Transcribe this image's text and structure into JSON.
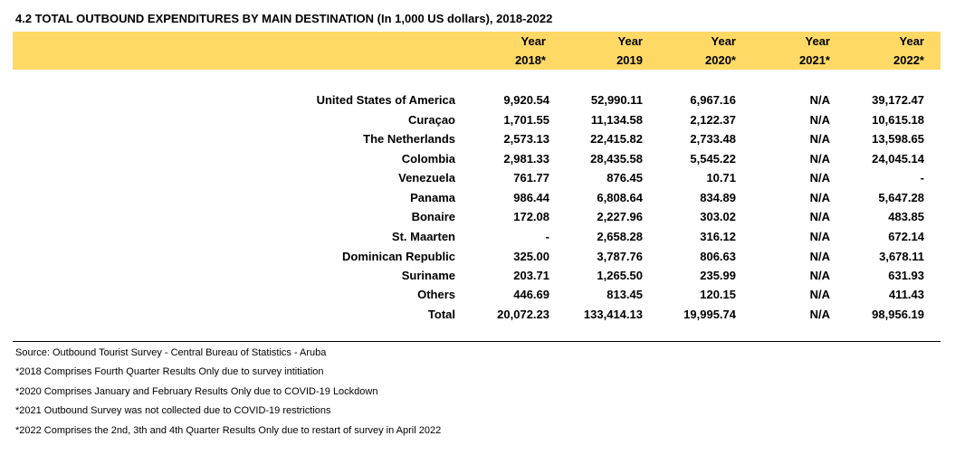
{
  "title": "4.2 TOTAL OUTBOUND EXPENDITURES BY MAIN DESTINATION (In 1,000 US dollars), 2018-2022",
  "columns": [
    {
      "line1": "Year",
      "line2": "2018*"
    },
    {
      "line1": "Year",
      "line2": "2019"
    },
    {
      "line1": "Year",
      "line2": "2020*"
    },
    {
      "line1": "Year",
      "line2": "2021*"
    },
    {
      "line1": "Year",
      "line2": "2022*"
    }
  ],
  "rows": [
    {
      "name": "United States of America",
      "values": [
        "9,920.54",
        "52,990.11",
        "6,967.16",
        "N/A",
        "39,172.47"
      ]
    },
    {
      "name": "Curaçao",
      "values": [
        "1,701.55",
        "11,134.58",
        "2,122.37",
        "N/A",
        "10,615.18"
      ]
    },
    {
      "name": "The Netherlands",
      "values": [
        "2,573.13",
        "22,415.82",
        "2,733.48",
        "N/A",
        "13,598.65"
      ]
    },
    {
      "name": "Colombia",
      "values": [
        "2,981.33",
        "28,435.58",
        "5,545.22",
        "N/A",
        "24,045.14"
      ]
    },
    {
      "name": "Venezuela",
      "values": [
        "761.77",
        "876.45",
        "10.71",
        "N/A",
        "-"
      ]
    },
    {
      "name": "Panama",
      "values": [
        "986.44",
        "6,808.64",
        "834.89",
        "N/A",
        "5,647.28"
      ]
    },
    {
      "name": "Bonaire",
      "values": [
        "172.08",
        "2,227.96",
        "303.02",
        "N/A",
        "483.85"
      ]
    },
    {
      "name": "St. Maarten",
      "values": [
        "-",
        "2,658.28",
        "316.12",
        "N/A",
        "672.14"
      ]
    },
    {
      "name": "Dominican Republic",
      "values": [
        "325.00",
        "3,787.76",
        "806.63",
        "N/A",
        "3,678.11"
      ]
    },
    {
      "name": "Suriname",
      "values": [
        "203.71",
        "1,265.50",
        "235.99",
        "N/A",
        "631.93"
      ]
    },
    {
      "name": "Others",
      "values": [
        "446.69",
        "813.45",
        "120.15",
        "N/A",
        "411.43"
      ]
    },
    {
      "name": "Total",
      "values": [
        "20,072.23",
        "133,414.13",
        "19,995.74",
        "N/A",
        "98,956.19"
      ]
    }
  ],
  "notes": [
    "Source: Outbound Tourist Survey - Central Bureau of Statistics - Aruba",
    "*2018 Comprises Fourth Quarter Results Only due to survey intitiation",
    "*2020 Comprises January and February Results Only due to COVID-19 Lockdown",
    "*2021 Outbound Survey was not collected due to COVID-19 restrictions",
    "*2022 Comprises the 2nd, 3th and 4th Quarter Results Only due to restart of survey in April 2022"
  ],
  "colors": {
    "header_band": "#ffd966"
  }
}
